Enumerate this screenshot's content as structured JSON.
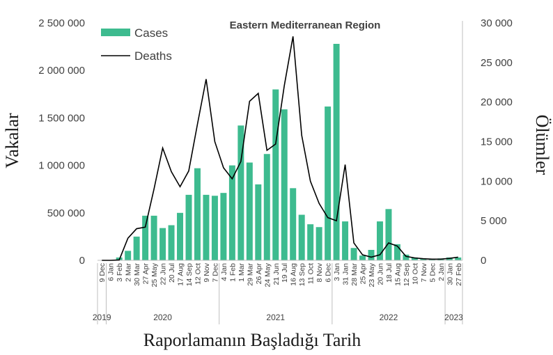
{
  "chart_data": {
    "type": "bar",
    "title": "Eastern Mediterranean Region",
    "xlabel": "Raporlamanın Başladığı Tarih",
    "ylabel": "Vakalar",
    "y2label": "Ölümler",
    "ylim": [
      0,
      2500000
    ],
    "y2lim": [
      0,
      30000
    ],
    "yticks": [
      "0",
      "500 000",
      "1 000 000",
      "1 500 000",
      "2 000 000",
      "2 500 000"
    ],
    "y2ticks": [
      "0",
      "5 000",
      "10 000",
      "15 000",
      "20 000",
      "25 000",
      "30 000"
    ],
    "categories": [
      "9 Dec",
      "6 Jan",
      "3 Feb",
      "2 Mar",
      "30 Mar",
      "27 Apr",
      "25 May",
      "22 Jun",
      "20 Jul",
      "17 Aug",
      "14 Sep",
      "12 Oct",
      "9 Nov",
      "7 Dec",
      "4 Jan",
      "1 Feb",
      "1 Mar",
      "29 Mar",
      "26 Apr",
      "24 May",
      "21 Jun",
      "19 Jul",
      "16 Aug",
      "13 Sep",
      "11 Oct",
      "8 Nov",
      "6 Dec",
      "3 Jan",
      "31 Jan",
      "28 Mar",
      "25 Apr",
      "23 May",
      "20 Jun",
      "18 Jul",
      "15 Aug",
      "12 Sep",
      "10 Oct",
      "7 Nov",
      "5 Dec",
      "2 Jan",
      "30 Jan",
      "27 Feb"
    ],
    "years": [
      {
        "label": "2019",
        "start": 0,
        "end": 0
      },
      {
        "label": "2020",
        "start": 1,
        "end": 13
      },
      {
        "label": "2021",
        "start": 14,
        "end": 26
      },
      {
        "label": "2022",
        "start": 27,
        "end": 39
      },
      {
        "label": "2023",
        "start": 40,
        "end": 41
      }
    ],
    "legend": "top-left",
    "series": [
      {
        "name": "Cases",
        "type": "bar",
        "axis": "left",
        "color": "#3dbb8f",
        "values": [
          0,
          0,
          30000,
          100000,
          250000,
          470000,
          470000,
          340000,
          370000,
          500000,
          690000,
          970000,
          690000,
          680000,
          710000,
          1000000,
          1420000,
          1030000,
          800000,
          1120000,
          1800000,
          1590000,
          760000,
          480000,
          380000,
          350000,
          1620000,
          2280000,
          410000,
          130000,
          50000,
          110000,
          410000,
          540000,
          170000,
          60000,
          30000,
          15000,
          10000,
          20000,
          30000,
          30000
        ]
      },
      {
        "name": "Deaths",
        "type": "line",
        "axis": "right",
        "color": "#000000",
        "values": [
          0,
          0,
          50,
          2800,
          4000,
          4200,
          9000,
          14200,
          11200,
          9300,
          11300,
          17200,
          22900,
          15000,
          11700,
          10300,
          12500,
          20100,
          21100,
          13900,
          14700,
          22100,
          28300,
          15800,
          10000,
          7200,
          5400,
          5000,
          12100,
          2200,
          700,
          400,
          700,
          2200,
          1800,
          500,
          300,
          200,
          150,
          150,
          250,
          400
        ]
      }
    ]
  }
}
